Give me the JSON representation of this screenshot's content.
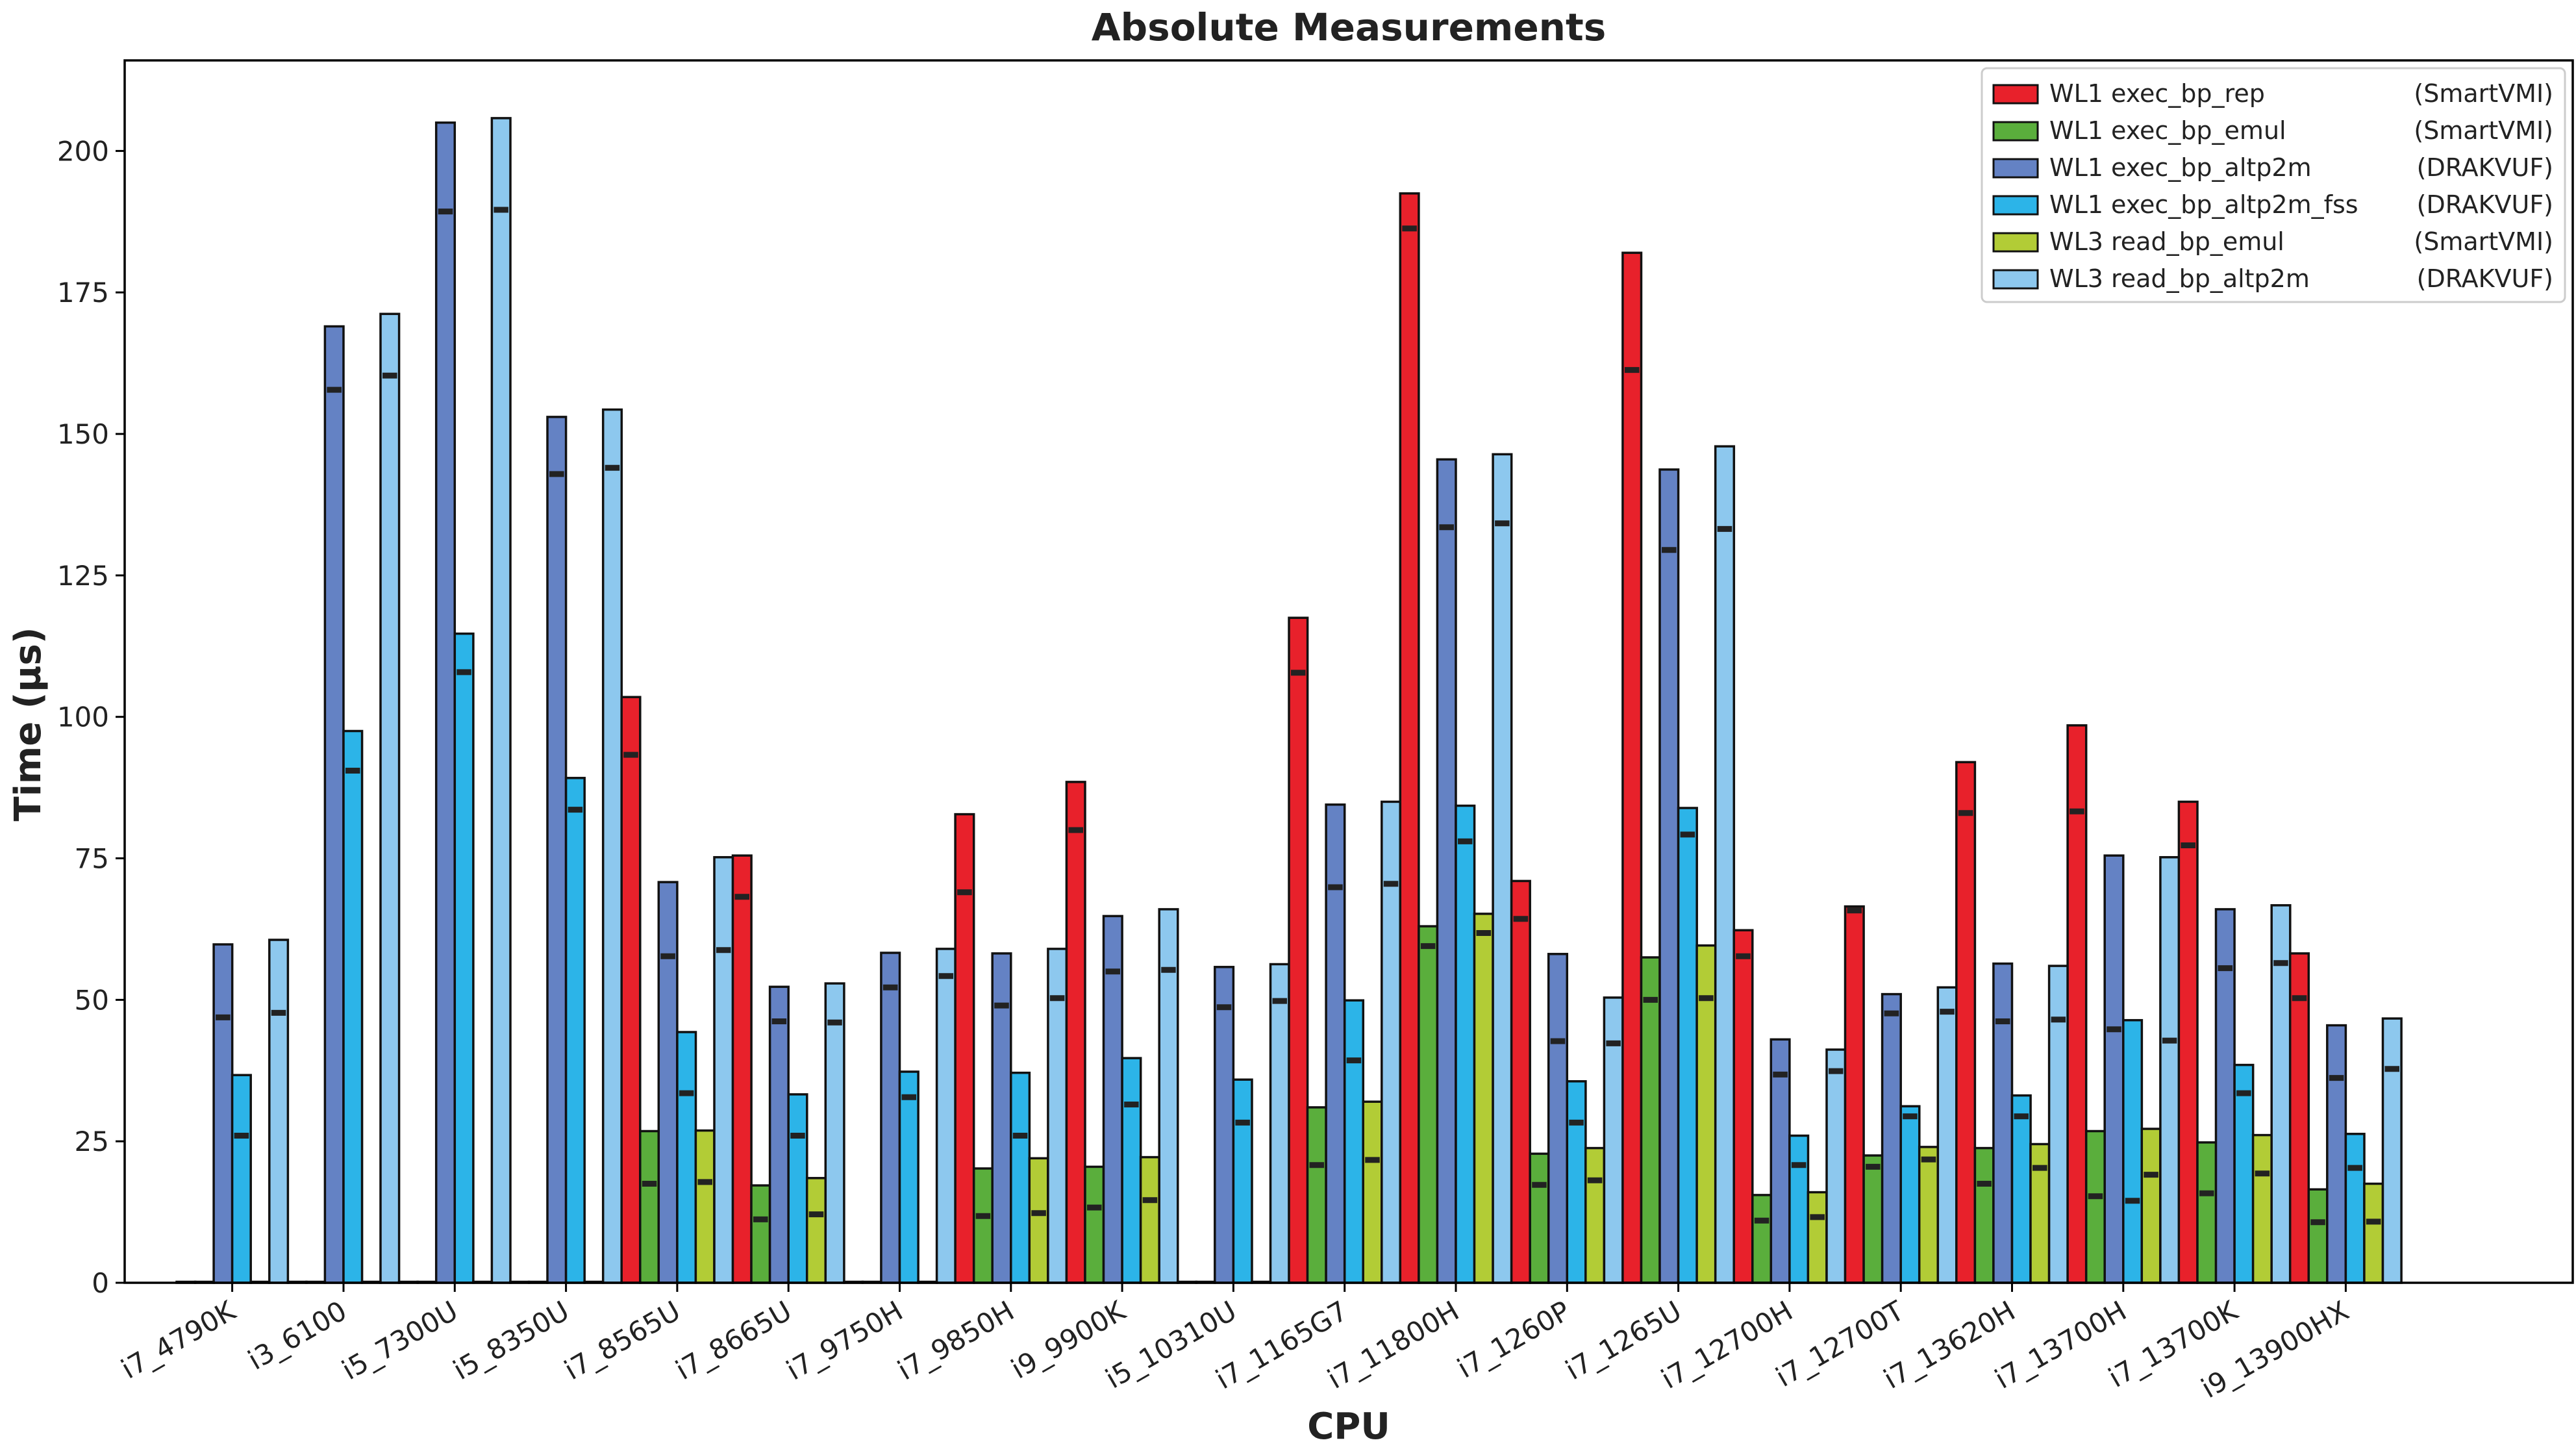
{
  "chart_data": {
    "type": "bar",
    "title": "Absolute Measurements",
    "xlabel": "CPU",
    "ylabel": "Time (µs)",
    "ylim": [
      0,
      216
    ],
    "yticks": [
      0,
      25,
      50,
      75,
      100,
      125,
      150,
      175,
      200
    ],
    "grid": false,
    "legend_position": "top-right",
    "categories": [
      "i7_4790K",
      "i3_6100",
      "i5_7300U",
      "i5_8350U",
      "i7_8565U",
      "i7_8665U",
      "i7_9750H",
      "i7_9850H",
      "i9_9900K",
      "i5_10310U",
      "i7_1165G7",
      "i7_11800H",
      "i7_1260P",
      "i7_1265U",
      "i7_12700H",
      "i7_12700T",
      "i7_13620H",
      "i7_13700H",
      "i7_13700K",
      "i9_13900HX"
    ],
    "series": [
      {
        "name": "WL1 exec_bp_rep",
        "tool": "(SmartVMI)",
        "color": "#e8212b",
        "values": [
          0,
          0,
          0,
          0,
          103.5,
          75.5,
          0,
          82.8,
          88.5,
          0,
          117.5,
          192.5,
          71,
          182,
          62.3,
          66.5,
          92,
          98.5,
          85,
          58.2
        ],
        "medians": [
          null,
          null,
          null,
          null,
          93.3,
          68.2,
          null,
          69,
          80,
          null,
          107.8,
          186.3,
          64.3,
          161.3,
          57.7,
          65.8,
          83,
          83.3,
          77.3,
          50.3
        ]
      },
      {
        "name": "WL1 exec_bp_emul",
        "tool": "(SmartVMI)",
        "color": "#5aae3c",
        "values": [
          0,
          0,
          0,
          0,
          26.8,
          17.2,
          0,
          20.2,
          20.5,
          0,
          31,
          63,
          22.8,
          57.5,
          15.5,
          22.5,
          23.8,
          26.8,
          24.8,
          16.5
        ],
        "medians": [
          null,
          null,
          null,
          null,
          17.5,
          11.2,
          null,
          11.8,
          13.3,
          null,
          20.8,
          59.5,
          17.3,
          50,
          11,
          20.5,
          17.5,
          15.3,
          15.8,
          10.7
        ]
      },
      {
        "name": "WL1 exec_bp_altp2m",
        "tool": "(DRAKVUF)",
        "color": "#6482c4",
        "values": [
          59.8,
          169,
          205,
          153,
          70.8,
          52.3,
          58.3,
          58.2,
          64.8,
          55.8,
          84.5,
          145.5,
          58.1,
          143.7,
          43,
          51,
          56.4,
          75.5,
          66,
          45.5
        ],
        "medians": [
          46.9,
          157.8,
          189.3,
          142.9,
          57.7,
          46.2,
          52.2,
          49,
          55,
          48.7,
          69.9,
          133.5,
          42.7,
          129.5,
          36.8,
          47.6,
          46.2,
          44.8,
          55.6,
          36.2
        ]
      },
      {
        "name": "WL1 exec_bp_altp2m_fss",
        "tool": "(DRAKVUF)",
        "color": "#2cb4e8",
        "values": [
          36.7,
          97.5,
          114.7,
          89.2,
          44.3,
          33.3,
          37.3,
          37.1,
          39.7,
          35.9,
          49.9,
          84.3,
          35.6,
          83.9,
          26,
          31.2,
          33.1,
          46.4,
          38.5,
          26.3
        ],
        "medians": [
          26,
          90.5,
          107.9,
          83.6,
          33.5,
          26,
          32.8,
          26,
          31.5,
          28.3,
          39.3,
          78,
          28.3,
          79.2,
          20.8,
          29.4,
          29.4,
          14.5,
          33.5,
          20.3
        ]
      },
      {
        "name": "WL3 read_bp_emul",
        "tool": "(SmartVMI)",
        "color": "#b2cc36",
        "values": [
          0,
          0,
          0,
          0,
          26.9,
          18.5,
          0,
          22,
          22.2,
          0,
          32,
          65.2,
          23.8,
          59.6,
          16,
          24,
          24.5,
          27.2,
          26.1,
          17.5
        ],
        "medians": [
          null,
          null,
          null,
          null,
          17.8,
          12.1,
          null,
          12.3,
          14.6,
          null,
          21.7,
          61.8,
          18.1,
          50.3,
          11.6,
          21.8,
          20.3,
          19.1,
          19.3,
          10.8
        ]
      },
      {
        "name": "WL3 read_bp_altp2m",
        "tool": "(DRAKVUF)",
        "color": "#8dc8ee",
        "values": [
          60.6,
          171.2,
          205.8,
          154.3,
          75.2,
          52.9,
          59,
          59,
          66,
          56.3,
          85,
          146.4,
          50.4,
          147.8,
          41.2,
          52.2,
          56,
          75.2,
          66.7,
          46.7
        ],
        "medians": [
          47.7,
          160.3,
          189.6,
          144,
          58.8,
          46,
          54.2,
          50.3,
          55.3,
          49.8,
          70.5,
          134.2,
          42.3,
          133.2,
          37.4,
          47.9,
          46.5,
          42.8,
          56.5,
          37.8
        ]
      }
    ]
  }
}
